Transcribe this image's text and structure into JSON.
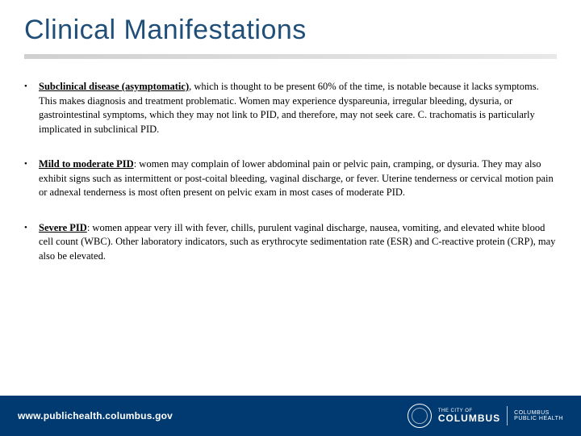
{
  "colors": {
    "title": "#1f4e79",
    "footer_bg": "#003a70",
    "text": "#000000",
    "footer_text": "#ffffff"
  },
  "title": "Clinical Manifestations",
  "bullets": [
    {
      "lead": "Subclinical disease (asymptomatic)",
      "rest": ", which is thought to be present 60% of the time, is notable because it lacks symptoms. This makes diagnosis and treatment problematic. Women may experience dyspareunia, irregular bleeding, dysuria, or gastrointestinal symptoms, which they may not link to PID, and therefore, may not seek care. C. trachomatis is particularly implicated in subclinical PID."
    },
    {
      "lead": "Mild to moderate PID",
      "rest": ": women may complain of lower abdominal pain or pelvic pain, cramping, or dysuria. They may also exhibit signs such as intermittent or post-coital bleeding, vaginal discharge, or fever. Uterine tenderness or cervical motion pain or adnexal tenderness is most often present on pelvic exam in most cases of moderate PID."
    },
    {
      "lead": "Severe PID",
      "rest": ": women appear very ill with fever, chills, purulent vaginal discharge, nausea, vomiting, and elevated white blood cell count (WBC). Other laboratory indicators, such as erythrocyte sedimentation rate (ESR) and C-reactive protein (CRP), may also be elevated."
    }
  ],
  "footer": {
    "url": "www.publichealth.columbus.gov",
    "logo_line1": "THE CITY OF",
    "logo_line2": "COLUMBUS",
    "logo_ph1": "COLUMBUS",
    "logo_ph2": "PUBLIC HEALTH"
  }
}
